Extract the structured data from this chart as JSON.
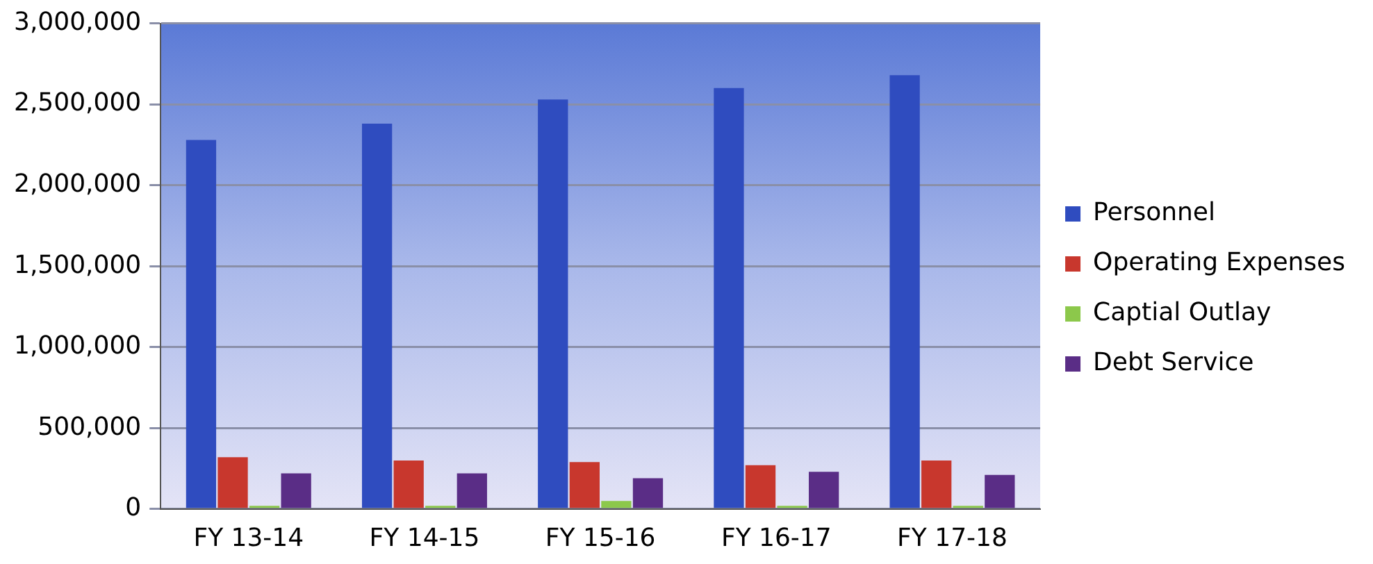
{
  "chart_data": {
    "type": "bar",
    "categories": [
      "FY 13-14",
      "FY 14-15",
      "FY 15-16",
      "FY 16-17",
      "FY 17-18"
    ],
    "series": [
      {
        "name": "Personnel",
        "color": "#2f4cbf",
        "values": [
          2280000,
          2380000,
          2530000,
          2600000,
          2680000
        ]
      },
      {
        "name": "Operating Expenses",
        "color": "#c8372d",
        "values": [
          320000,
          300000,
          290000,
          270000,
          300000
        ]
      },
      {
        "name": "Captial Outlay",
        "color": "#8cc84b",
        "values": [
          20000,
          20000,
          50000,
          20000,
          20000
        ]
      },
      {
        "name": "Debt Service",
        "color": "#5a2d86",
        "values": [
          220000,
          220000,
          190000,
          230000,
          210000
        ]
      }
    ],
    "ylim": [
      0,
      3000000
    ],
    "yticks": [
      0,
      {
        "value": 500000,
        "label": "500,000"
      },
      {
        "value": 1000000,
        "label": "1,000,000"
      },
      {
        "value": 1500000,
        "label": "1,500,000"
      },
      {
        "value": 2000000,
        "label": "2,000,000"
      },
      {
        "value": 2500000,
        "label": "2,500,000"
      },
      {
        "value": 3000000,
        "label": "3,000,000"
      }
    ],
    "grid": "y",
    "legend": "right"
  }
}
